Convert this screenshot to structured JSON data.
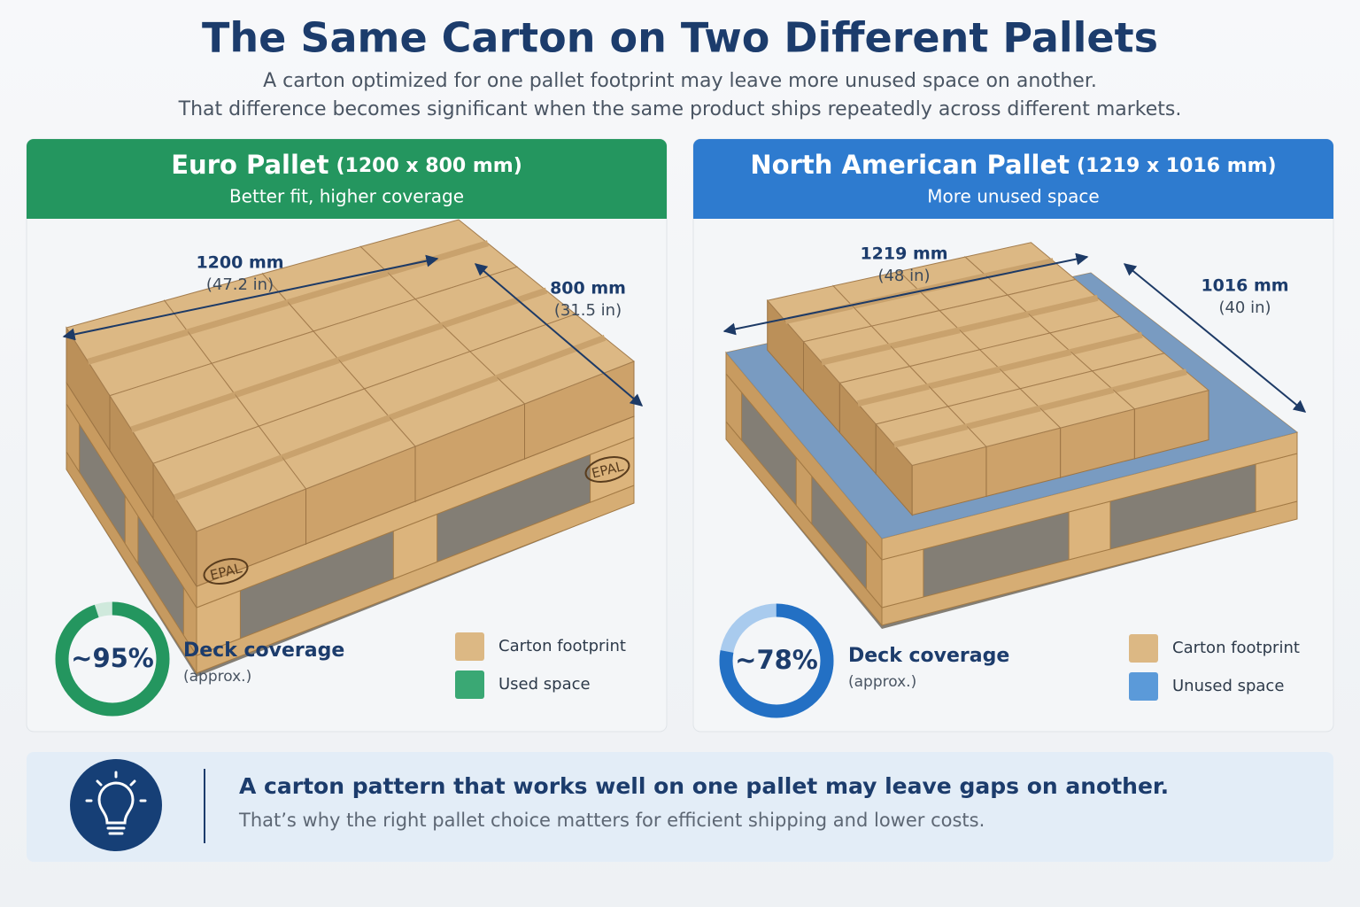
{
  "header": {
    "title": "The Same Carton on Two Different Pallets",
    "subtitle_lines": [
      "A carton optimized for one pallet footprint may leave more unused space on another.",
      "That difference becomes significant when the same product ships repeatedly across different markets."
    ]
  },
  "panels": [
    {
      "name": "Euro Pallet",
      "dimensions": "(1200 x 800 mm)",
      "tagline": "Better fit, higher coverage",
      "length": {
        "mm": "1200 mm",
        "in": "(47.2 in)"
      },
      "width": {
        "mm": "800 mm",
        "in": "(31.5 in)"
      },
      "stamp": "EPAL",
      "coverage": {
        "value": 95,
        "label": "~95%"
      },
      "coverage_title": "Deck coverage",
      "coverage_note": "(approx.)",
      "legend": [
        "Carton footprint",
        "Used space"
      ]
    },
    {
      "name": "North American Pallet",
      "dimensions": "(1219 x 1016 mm)",
      "tagline": "More unused space",
      "length": {
        "mm": "1219 mm",
        "in": "(48 in)"
      },
      "width": {
        "mm": "1016 mm",
        "in": "(40 in)"
      },
      "coverage": {
        "value": 78,
        "label": "~78%"
      },
      "coverage_title": "Deck coverage",
      "coverage_note": "(approx.)",
      "legend": [
        "Carton footprint",
        "Unused space"
      ]
    }
  ],
  "callout": {
    "headline": "A carton pattern that works well on one pallet may leave gaps on another.",
    "body": "That’s why the right pallet choice matters for efficient shipping and lower costs."
  }
}
